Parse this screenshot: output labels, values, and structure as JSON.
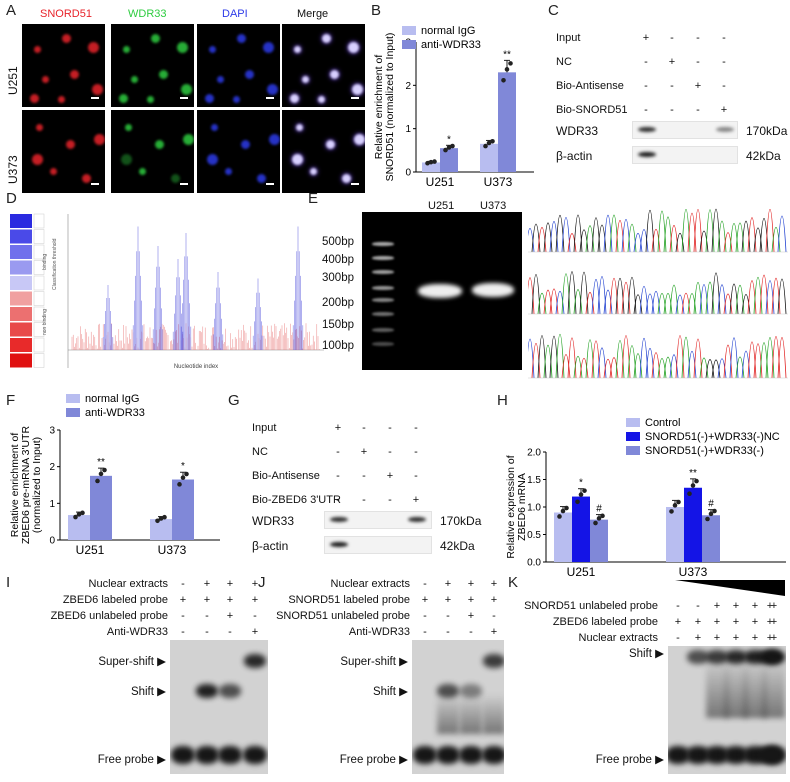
{
  "panelA": {
    "label": "A",
    "channels": [
      "SNORD51",
      "WDR33",
      "DAPI",
      "Merge"
    ],
    "channel_colors": [
      "#e8242b",
      "#2ecc40",
      "#2d3be8",
      "#222222"
    ],
    "rows": [
      "U251",
      "U373"
    ]
  },
  "panelB": {
    "label": "B",
    "legend": [
      "normal IgG",
      "anti-WDR33"
    ],
    "ylabel_line1": "Relative enrichment of",
    "ylabel_line2": "SNORD51 (normalized to Input)",
    "yticks": [
      "0",
      "1",
      "2",
      "3"
    ],
    "categories": [
      "U251",
      "U373"
    ],
    "sig": [
      "*",
      "**"
    ]
  },
  "panelC": {
    "label": "C",
    "rows": [
      "Input",
      "NC",
      "Bio-Antisense",
      "Bio-SNORD51"
    ],
    "signs": [
      [
        "+",
        "-",
        "-",
        "-"
      ],
      [
        "-",
        "+",
        "-",
        "-"
      ],
      [
        "-",
        "-",
        "+",
        "-"
      ],
      [
        "-",
        "-",
        "-",
        "+"
      ]
    ],
    "blots": [
      "WDR33",
      "β-actin"
    ],
    "sizes": [
      "170kDa",
      "42kDa"
    ]
  },
  "panelD": {
    "label": "D",
    "xlabel": "Nucleotide index",
    "left_labels": [
      "Classification threshold",
      "binding",
      "non binding",
      "Classification threshold"
    ]
  },
  "panelE": {
    "label": "E",
    "lanes": [
      "U251",
      "U373"
    ],
    "ladder": [
      "500bp",
      "400bp",
      "300bp",
      "200bp",
      "150bp",
      "100bp"
    ]
  },
  "panelF": {
    "label": "F",
    "legend": [
      "normal IgG",
      "anti-WDR33"
    ],
    "ylabel_line1": "Relative enrichment of",
    "ylabel_line2": "ZBED6 pre-mRNA 3'UTR",
    "ylabel_line3": "(normalized to Input)",
    "yticks": [
      "0",
      "1",
      "2",
      "3"
    ],
    "categories": [
      "U251",
      "U373"
    ],
    "sig": [
      "**",
      "*"
    ]
  },
  "panelG": {
    "label": "G",
    "rows": [
      "Input",
      "NC",
      "Bio-Antisense",
      "Bio-ZBED6 3'UTR"
    ],
    "signs": [
      [
        "+",
        "-",
        "-",
        "-"
      ],
      [
        "-",
        "+",
        "-",
        "-"
      ],
      [
        "-",
        "-",
        "+",
        "-"
      ],
      [
        "-",
        "-",
        "-",
        "+"
      ]
    ],
    "blots": [
      "WDR33",
      "β-actin"
    ],
    "sizes": [
      "170kDa",
      "42kDa"
    ]
  },
  "panelH": {
    "label": "H",
    "legend": [
      "Control",
      "SNORD51(-)+WDR33(-)NC",
      "SNORD51(-)+WDR33(-)"
    ],
    "ylabel_line1": "Relative expression of",
    "ylabel_line2": "ZBED6 mRNA",
    "yticks": [
      "0.0",
      "0.5",
      "1.0",
      "1.5",
      "2.0"
    ],
    "categories": [
      "U251",
      "U373"
    ],
    "sig": [
      "*",
      "#",
      "**",
      "#"
    ]
  },
  "panelI": {
    "label": "I",
    "rows": [
      "Nuclear extracts",
      "ZBED6 labeled probe",
      "ZBED6 unlabeled probe",
      "Anti-WDR33"
    ],
    "signs": [
      [
        "-",
        "+",
        "+",
        "+"
      ],
      [
        "+",
        "+",
        "+",
        "+"
      ],
      [
        "-",
        "-",
        "+",
        "-"
      ],
      [
        "-",
        "-",
        "-",
        "+"
      ]
    ],
    "markers": [
      "Super-shift ▶",
      "Shift ▶",
      "Free probe ▶"
    ]
  },
  "panelJ": {
    "label": "J",
    "rows": [
      "Nuclear extracts",
      "SNORD51 labeled probe",
      "SNORD51 unlabeled probe",
      "Anti-WDR33"
    ],
    "signs": [
      [
        "-",
        "+",
        "+",
        "+"
      ],
      [
        "+",
        "+",
        "+",
        "+"
      ],
      [
        "-",
        "-",
        "+",
        "-"
      ],
      [
        "-",
        "-",
        "-",
        "+"
      ]
    ],
    "markers": [
      "Super-shift ▶",
      "Shift ▶",
      "Free probe ▶"
    ]
  },
  "panelK": {
    "label": "K",
    "rows": [
      "SNORD51 unlabeled probe",
      "ZBED6 labeled probe",
      "Nuclear extracts"
    ],
    "signs": [
      [
        "-",
        "-",
        "+",
        "+",
        "+",
        "+",
        "+"
      ],
      [
        "+",
        "+",
        "+",
        "+",
        "+",
        "+",
        "+"
      ],
      [
        "-",
        "+",
        "+",
        "+",
        "+",
        "+",
        "+"
      ]
    ],
    "markers": [
      "Shift ▶",
      "Free probe ▶"
    ]
  },
  "chart_data": [
    {
      "type": "bar",
      "panel": "B",
      "categories": [
        "U251",
        "U373"
      ],
      "series": [
        {
          "name": "normal IgG",
          "color": "#b8bdf0",
          "values": [
            0.22,
            0.65
          ]
        },
        {
          "name": "anti-WDR33",
          "color": "#8088d8",
          "values": [
            0.55,
            2.3
          ]
        }
      ],
      "ylim": [
        0,
        3
      ],
      "ylabel": "Relative enrichment of SNORD51 (normalized to Input)"
    },
    {
      "type": "bar",
      "panel": "F",
      "categories": [
        "U251",
        "U373"
      ],
      "series": [
        {
          "name": "normal IgG",
          "color": "#b8bdf0",
          "values": [
            0.68,
            0.57
          ]
        },
        {
          "name": "anti-WDR33",
          "color": "#8088d8",
          "values": [
            1.75,
            1.65
          ]
        }
      ],
      "ylim": [
        0,
        3
      ],
      "ylabel": "Relative enrichment of ZBED6 pre-mRNA 3'UTR (normalized to Input)"
    },
    {
      "type": "bar",
      "panel": "H",
      "categories": [
        "U251",
        "U373"
      ],
      "series": [
        {
          "name": "Control",
          "color": "#b8bdf0",
          "values": [
            0.9,
            1.0
          ]
        },
        {
          "name": "SNORD51(-)+WDR33(-)NC",
          "color": "#1414e6",
          "values": [
            1.19,
            1.35
          ]
        },
        {
          "name": "SNORD51(-)+WDR33(-)",
          "color": "#8088d8",
          "values": [
            0.77,
            0.85
          ]
        }
      ],
      "ylim": [
        0,
        2.0
      ],
      "ylabel": "Relative expression of ZBED6 mRNA"
    }
  ]
}
